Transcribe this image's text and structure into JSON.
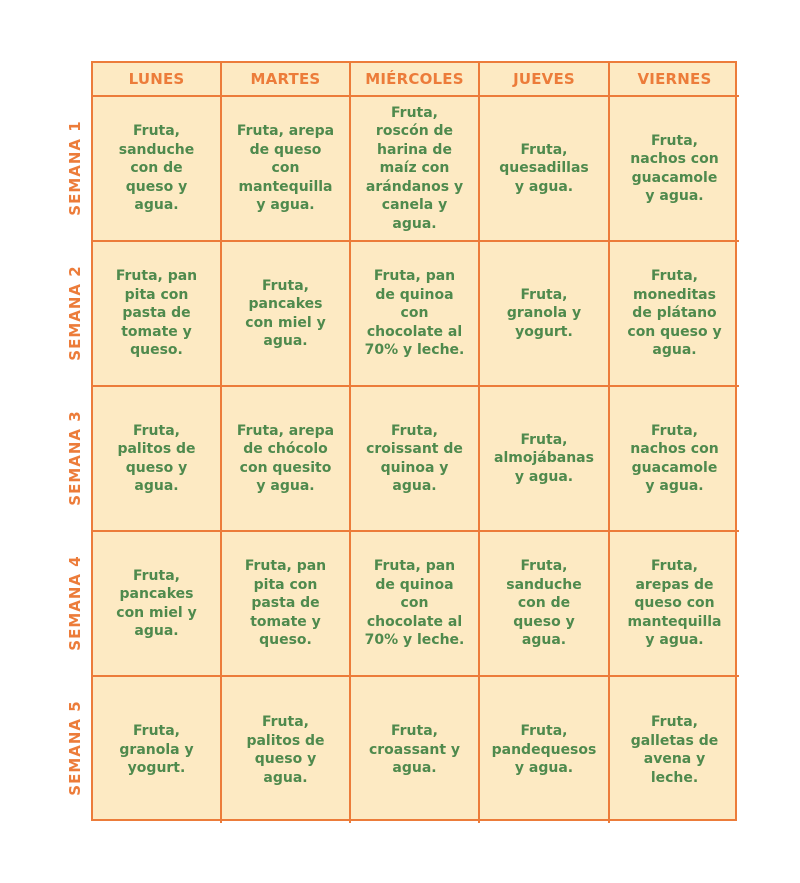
{
  "days": [
    "LUNES",
    "MARTES",
    "MIÉRCOLES",
    "JUEVES",
    "VIERNES"
  ],
  "weeks": [
    {
      "label": "SEMANA 1",
      "meals": [
        "Fruta,\nsanduche\ncon de\nqueso y\nagua.",
        "Fruta, arepa\nde queso\ncon\nmantequilla\ny agua.",
        "Fruta,\nroscón de\nharina de\nmaíz con\narándanos y\ncanela y\nagua.",
        "Fruta,\nquesadillas\ny agua.",
        "Fruta,\nnachos con\nguacamole\ny agua."
      ]
    },
    {
      "label": "SEMANA 2",
      "meals": [
        "Fruta, pan\npita con\npasta de\ntomate y\nqueso.",
        "Fruta,\npancakes\ncon miel y\nagua.",
        "Fruta, pan\nde quinoa\ncon\nchocolate al\n70% y leche.",
        "Fruta,\ngranola y\nyogurt.",
        "Fruta,\nmoneditas\nde plátano\ncon queso y\nagua."
      ]
    },
    {
      "label": "SEMANA 3",
      "meals": [
        "Fruta,\npalitos de\nqueso y\nagua.",
        "Fruta, arepa\nde chócolo\ncon quesito\ny agua.",
        "Fruta,\ncroissant de\nquinoa y\nagua.",
        "Fruta,\nalmojábanas\ny agua.",
        "Fruta,\nnachos con\nguacamole\ny agua."
      ]
    },
    {
      "label": "SEMANA 4",
      "meals": [
        "Fruta,\npancakes\ncon miel y\nagua.",
        "Fruta, pan\npita con\npasta de\ntomate y\nqueso.",
        "Fruta, pan\nde quinoa\ncon\nchocolate al\n70% y leche.",
        "Fruta,\nsanduche\ncon de\nqueso y\nagua.",
        "Fruta,\narepas de\nqueso con\nmantequilla\ny agua."
      ]
    },
    {
      "label": "SEMANA 5",
      "meals": [
        "Fruta,\ngranola y\nyogurt.",
        "Fruta,\npalitos de\nqueso y\nagua.",
        "Fruta,\ncroassant y\nagua.",
        "Fruta,\npandequesos\ny agua.",
        "Fruta,\ngalletas de\navena y\nleche."
      ]
    }
  ],
  "colors": {
    "border": "#ec7c3a",
    "cell_background": "#fdeac3",
    "header_text": "#ec7c3a",
    "meal_text": "#4f8a4d"
  }
}
